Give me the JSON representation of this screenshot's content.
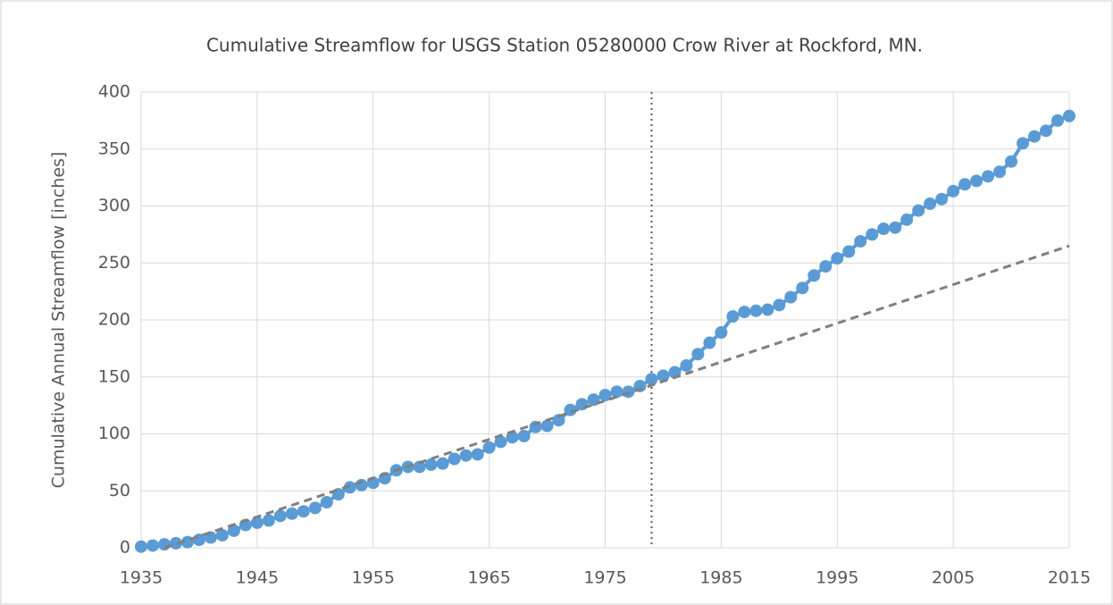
{
  "chart_data": {
    "type": "line",
    "title": "Cumulative Streamflow for USGS Station 05280000 Crow River at Rockford, MN.",
    "y_label": "Cumulative Annual Streamflow [inches]",
    "x": [
      1935,
      1936,
      1937,
      1938,
      1939,
      1940,
      1941,
      1942,
      1943,
      1944,
      1945,
      1946,
      1947,
      1948,
      1949,
      1950,
      1951,
      1952,
      1953,
      1954,
      1955,
      1956,
      1957,
      1958,
      1959,
      1960,
      1961,
      1962,
      1963,
      1964,
      1965,
      1966,
      1967,
      1968,
      1969,
      1970,
      1971,
      1972,
      1973,
      1974,
      1975,
      1976,
      1977,
      1978,
      1979,
      1980,
      1981,
      1982,
      1983,
      1984,
      1985,
      1986,
      1987,
      1988,
      1989,
      1990,
      1991,
      1992,
      1993,
      1994,
      1995,
      1996,
      1997,
      1998,
      1999,
      2000,
      2001,
      2002,
      2003,
      2004,
      2005,
      2006,
      2007,
      2008,
      2009,
      2010,
      2011,
      2012,
      2013,
      2014,
      2015
    ],
    "series": [
      {
        "color": "#5b9bd5",
        "values": [
          1,
          2,
          3,
          4,
          5,
          7,
          9,
          11,
          15,
          20,
          22,
          24,
          28,
          30,
          32,
          35,
          40,
          47,
          53,
          55,
          57,
          61,
          68,
          71,
          71,
          73,
          74,
          78,
          81,
          82,
          88,
          93,
          97,
          98,
          106,
          107,
          112,
          121,
          126,
          130,
          134,
          137,
          137,
          142,
          148,
          151,
          154,
          160,
          170,
          180,
          189,
          203,
          207,
          208,
          209,
          213,
          220,
          228,
          239,
          247,
          254,
          260,
          269,
          275,
          280,
          281,
          288,
          296,
          302,
          306,
          313,
          319,
          322,
          326,
          330,
          339,
          355,
          361,
          366,
          375,
          379
        ]
      }
    ],
    "trend_line": {
      "color": "#7f7f7f",
      "x": [
        1937,
        2015
      ],
      "values": [
        0,
        265
      ]
    },
    "vertical_line": {
      "color": "#595959",
      "x": 1979
    },
    "xlim": [
      1935,
      2015
    ],
    "xticks": [
      1935,
      1945,
      1955,
      1965,
      1975,
      1985,
      1995,
      2005,
      2015
    ],
    "ylim": [
      0,
      400
    ],
    "yticks": [
      0,
      50,
      100,
      150,
      200,
      250,
      300,
      350,
      400
    ],
    "grid": true
  }
}
